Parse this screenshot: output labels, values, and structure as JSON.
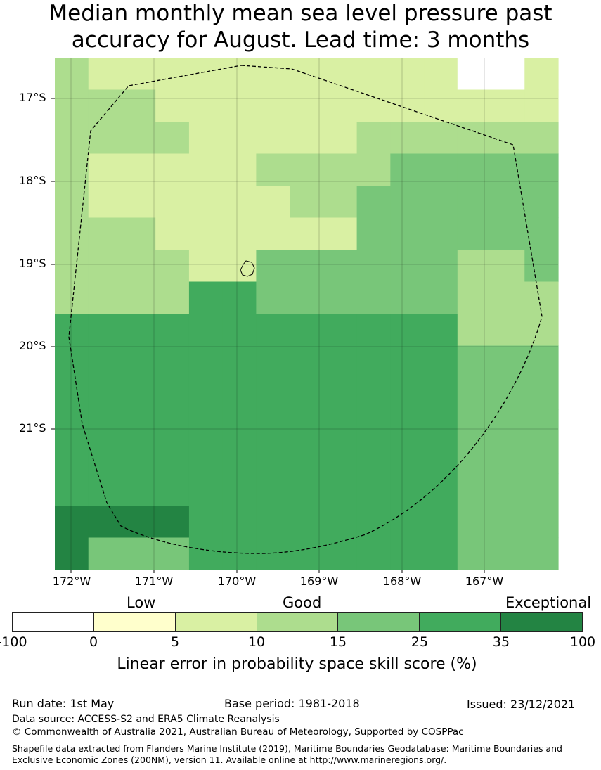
{
  "title_line1": "Median monthly mean sea level pressure past",
  "title_line2": "accuracy for August. Lead time: 3 months",
  "map": {
    "lat_labels": [
      "17°S",
      "18°S",
      "19°S",
      "20°S",
      "21°S"
    ],
    "lon_labels": [
      "172°W",
      "171°W",
      "170°W",
      "169°W",
      "168°W",
      "167°W"
    ],
    "cell_classes": [
      [
        3,
        2,
        2,
        2,
        2,
        2,
        2,
        2,
        2,
        2,
        2,
        2,
        0,
        0,
        2
      ],
      [
        3,
        3,
        3,
        2,
        2,
        2,
        2,
        2,
        2,
        2,
        2,
        2,
        2,
        2,
        2
      ],
      [
        3,
        3,
        3,
        3,
        2,
        2,
        2,
        2,
        2,
        3,
        3,
        3,
        3,
        3,
        3
      ],
      [
        3,
        2,
        2,
        2,
        2,
        2,
        3,
        3,
        3,
        3,
        4,
        4,
        4,
        4,
        4
      ],
      [
        3,
        2,
        2,
        2,
        2,
        2,
        2,
        3,
        3,
        4,
        4,
        4,
        4,
        4,
        4
      ],
      [
        3,
        3,
        3,
        2,
        2,
        2,
        2,
        2,
        2,
        4,
        4,
        4,
        4,
        4,
        4
      ],
      [
        3,
        3,
        3,
        3,
        2,
        2,
        4,
        4,
        4,
        4,
        4,
        4,
        3,
        3,
        4
      ],
      [
        3,
        3,
        3,
        3,
        5,
        5,
        4,
        4,
        4,
        4,
        4,
        4,
        3,
        3,
        3
      ],
      [
        5,
        5,
        5,
        5,
        5,
        5,
        5,
        5,
        5,
        5,
        5,
        5,
        3,
        3,
        3
      ],
      [
        5,
        5,
        5,
        5,
        5,
        5,
        5,
        5,
        5,
        5,
        5,
        5,
        4,
        4,
        4
      ],
      [
        5,
        5,
        5,
        5,
        5,
        5,
        5,
        5,
        5,
        5,
        5,
        5,
        4,
        4,
        4
      ],
      [
        5,
        5,
        5,
        5,
        5,
        5,
        5,
        5,
        5,
        5,
        5,
        5,
        4,
        4,
        4
      ],
      [
        5,
        5,
        5,
        5,
        5,
        5,
        5,
        5,
        5,
        5,
        5,
        5,
        4,
        4,
        4
      ],
      [
        5,
        5,
        5,
        5,
        5,
        5,
        5,
        5,
        5,
        5,
        5,
        5,
        4,
        4,
        4
      ],
      [
        6,
        6,
        6,
        6,
        5,
        5,
        5,
        5,
        5,
        5,
        5,
        5,
        4,
        4,
        4
      ],
      [
        6,
        4,
        4,
        4,
        5,
        5,
        5,
        5,
        5,
        5,
        5,
        5,
        4,
        4,
        4
      ]
    ]
  },
  "legend": {
    "categories": [
      "Low",
      "Good",
      "Exceptional"
    ],
    "colors": [
      "#ffffff",
      "#ffffcc",
      "#d9f0a3",
      "#addd8e",
      "#78c679",
      "#41ab5d",
      "#238443"
    ],
    "ticks": [
      "-100",
      "0",
      "5",
      "10",
      "15",
      "25",
      "35",
      "100"
    ],
    "label": "Linear error in probability space skill score (%)"
  },
  "footer": {
    "run_date": "Run date: 1st May",
    "base_period": "Base period: 1981-2018",
    "issued": "Issued: 23/12/2021",
    "data_source": "Data source: ACCESS-S2 and ERA5 Climate Reanalysis",
    "copyright": "© Commonwealth of Australia 2021, Australian Bureau of Meteorology, Supported by COSPPac",
    "shapefile": "Shapefile data extracted from Flanders Marine Institute (2019), Maritime Boundaries Geodatabase: Maritime Boundaries and Exclusive Economic Zones (200NM), version 11. Available online at http://www.marineregions.org/."
  }
}
